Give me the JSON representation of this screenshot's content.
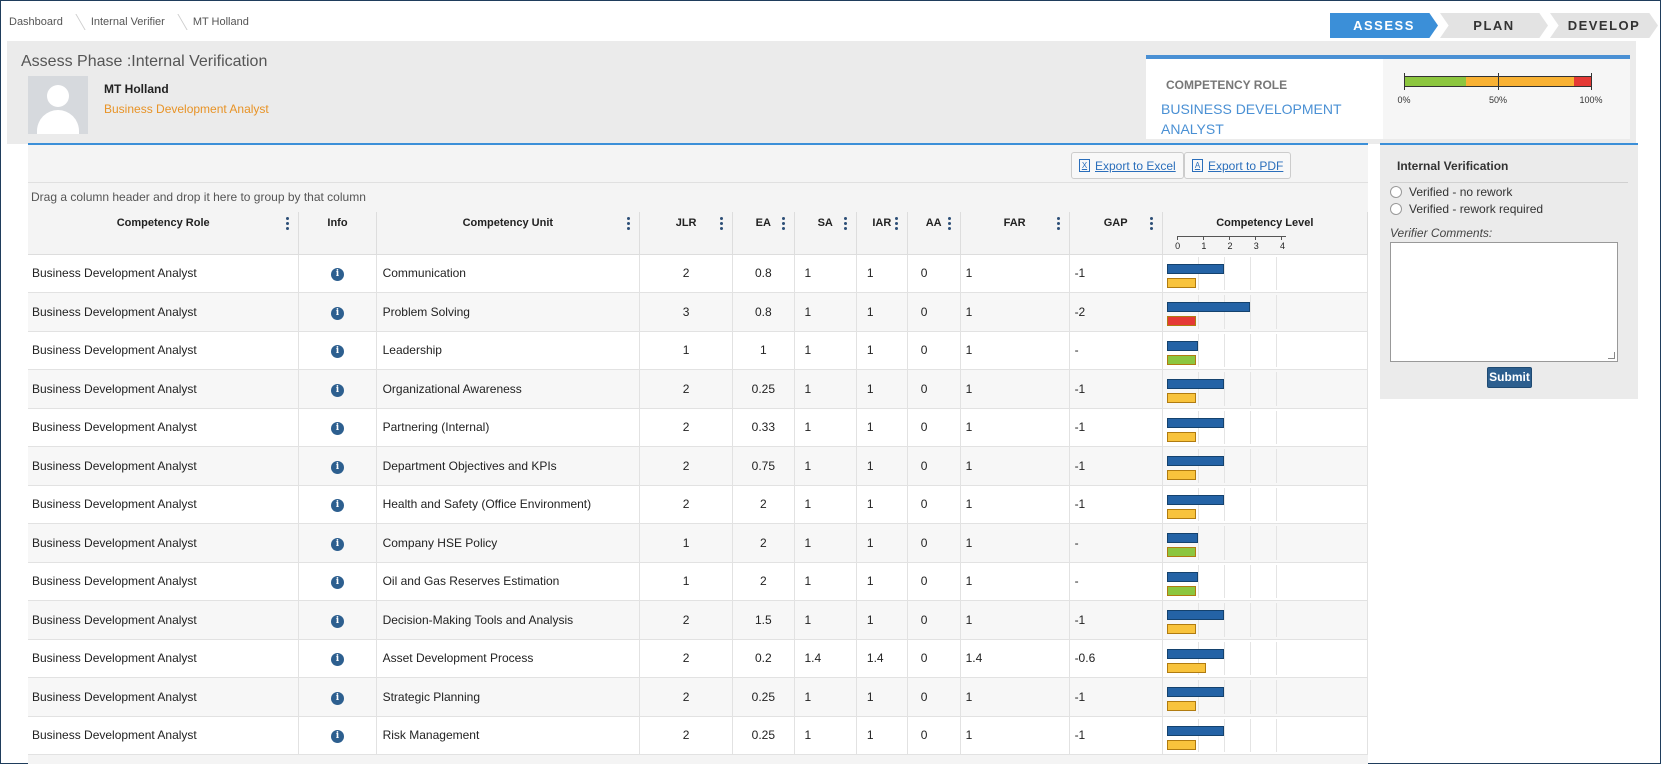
{
  "breadcrumb": [
    "Dashboard",
    "Internal Verifier",
    "MT Holland"
  ],
  "phases": [
    {
      "label": "ASSESS",
      "active": true
    },
    {
      "label": "PLAN",
      "active": false
    },
    {
      "label": "DEVELOP",
      "active": false
    }
  ],
  "header": {
    "title": "Assess Phase :Internal Verification",
    "user_name": "MT Holland",
    "user_role": "Business Development Analyst"
  },
  "competency_card": {
    "label": "COMPETENCY ROLE",
    "value": "BUSINESS DEVELOPMENT ANALYST",
    "gauge_labels": [
      "0%",
      "50%",
      "100%"
    ],
    "gauge_segments": [
      {
        "color": "#8cc63f",
        "fraction": 0.33
      },
      {
        "color": "#f8b133",
        "fraction": 0.58
      },
      {
        "color": "#e53935",
        "fraction": 0.09
      }
    ]
  },
  "grid": {
    "export_excel": "Export to Excel",
    "export_pdf": "Export to PDF",
    "group_hint": "Drag a column header and drop it here to group by that column",
    "columns": [
      "Competency Role",
      "Info",
      "Competency Unit",
      "JLR",
      "EA",
      "SA",
      "IAR",
      "AA",
      "FAR",
      "GAP",
      "Competency Level"
    ],
    "scale_labels": [
      "0",
      "1",
      "2",
      "3",
      "4"
    ],
    "colors": {
      "jlr": "#2463a6",
      "below": "#f8c33c",
      "above_or_equal": "#8cc63f",
      "critical": "#e53935"
    },
    "rows": [
      {
        "role": "Business Development Analyst",
        "unit": "Communication",
        "jlr": "2",
        "ea": "0.8",
        "sa": "1",
        "iar": "1",
        "aa": "0",
        "far": "1",
        "gap": "-1",
        "bar_color": "#f8c33c"
      },
      {
        "role": "Business Development Analyst",
        "unit": "Problem Solving",
        "jlr": "3",
        "ea": "0.8",
        "sa": "1",
        "iar": "1",
        "aa": "0",
        "far": "1",
        "gap": "-2",
        "bar_color": "#e53935"
      },
      {
        "role": "Business Development Analyst",
        "unit": "Leadership",
        "jlr": "1",
        "ea": "1",
        "sa": "1",
        "iar": "1",
        "aa": "0",
        "far": "1",
        "gap": "-",
        "bar_color": "#8cc63f"
      },
      {
        "role": "Business Development Analyst",
        "unit": "Organizational Awareness",
        "jlr": "2",
        "ea": "0.25",
        "sa": "1",
        "iar": "1",
        "aa": "0",
        "far": "1",
        "gap": "-1",
        "bar_color": "#f8c33c"
      },
      {
        "role": "Business Development Analyst",
        "unit": "Partnering (Internal)",
        "jlr": "2",
        "ea": "0.33",
        "sa": "1",
        "iar": "1",
        "aa": "0",
        "far": "1",
        "gap": "-1",
        "bar_color": "#f8c33c"
      },
      {
        "role": "Business Development Analyst",
        "unit": "Department Objectives and KPIs",
        "jlr": "2",
        "ea": "0.75",
        "sa": "1",
        "iar": "1",
        "aa": "0",
        "far": "1",
        "gap": "-1",
        "bar_color": "#f8c33c"
      },
      {
        "role": "Business Development Analyst",
        "unit": "Health and Safety (Office Environment)",
        "jlr": "2",
        "ea": "2",
        "sa": "1",
        "iar": "1",
        "aa": "0",
        "far": "1",
        "gap": "-1",
        "bar_color": "#f8c33c"
      },
      {
        "role": "Business Development Analyst",
        "unit": "Company HSE Policy",
        "jlr": "1",
        "ea": "2",
        "sa": "1",
        "iar": "1",
        "aa": "0",
        "far": "1",
        "gap": "-",
        "bar_color": "#8cc63f"
      },
      {
        "role": "Business Development Analyst",
        "unit": "Oil and Gas Reserves Estimation",
        "jlr": "1",
        "ea": "2",
        "sa": "1",
        "iar": "1",
        "aa": "0",
        "far": "1",
        "gap": "-",
        "bar_color": "#8cc63f"
      },
      {
        "role": "Business Development Analyst",
        "unit": "Decision-Making Tools and Analysis",
        "jlr": "2",
        "ea": "1.5",
        "sa": "1",
        "iar": "1",
        "aa": "0",
        "far": "1",
        "gap": "-1",
        "bar_color": "#f8c33c"
      },
      {
        "role": "Business Development Analyst",
        "unit": "Asset Development Process",
        "jlr": "2",
        "ea": "0.2",
        "sa": "1.4",
        "iar": "1.4",
        "aa": "0",
        "far": "1.4",
        "gap": "-0.6",
        "bar_color": "#f8c33c"
      },
      {
        "role": "Business Development Analyst",
        "unit": "Strategic Planning",
        "jlr": "2",
        "ea": "0.25",
        "sa": "1",
        "iar": "1",
        "aa": "0",
        "far": "1",
        "gap": "-1",
        "bar_color": "#f8c33c"
      },
      {
        "role": "Business Development Analyst",
        "unit": "Risk Management",
        "jlr": "2",
        "ea": "0.25",
        "sa": "1",
        "iar": "1",
        "aa": "0",
        "far": "1",
        "gap": "-1",
        "bar_color": "#f8c33c"
      }
    ]
  },
  "verification": {
    "title": "Internal Verification",
    "options": [
      "Verified - no rework",
      "Verified - rework required"
    ],
    "comments_label": "Verifier Comments:",
    "comments_value": "",
    "submit_label": "Submit"
  }
}
